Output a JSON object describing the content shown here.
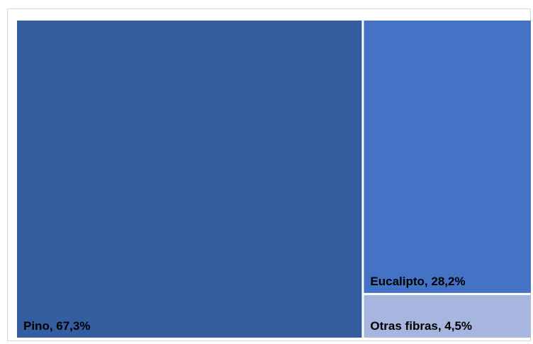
{
  "chart_data": {
    "type": "treemap",
    "title": "",
    "items": [
      {
        "name": "Pino",
        "value": 67.3,
        "label": "Pino, 67,3%",
        "color": "#345ea0",
        "label_color": "#000000"
      },
      {
        "name": "Eucalipto",
        "value": 28.2,
        "label": "Eucalipto, 28,2%",
        "color": "#4472c4",
        "label_color": "#000000"
      },
      {
        "name": "Otras fibras",
        "value": 4.5,
        "label": "Otras fibras, 4,5%",
        "color": "#a6b6de",
        "label_color": "#000000"
      }
    ]
  }
}
